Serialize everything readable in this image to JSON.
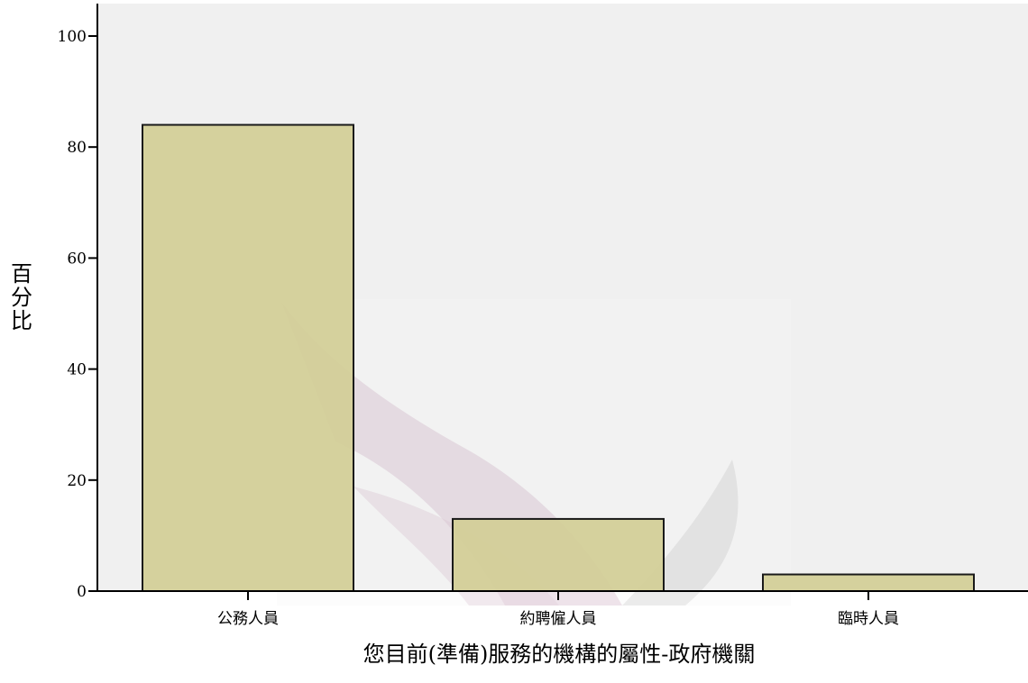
{
  "chart_data": {
    "type": "bar",
    "categories": [
      "公務人員",
      "約聘僱人員",
      "臨時人員"
    ],
    "values": [
      84,
      13,
      3
    ],
    "xlabel": "您目前(準備)服務的機構的屬性-政府機關",
    "ylabel": "百分比",
    "ylim": [
      0,
      100
    ],
    "yticks": [
      0,
      20,
      40,
      60,
      80,
      100
    ],
    "grid": false,
    "legend": "none"
  },
  "colors": {
    "plot_background": "#f0f0f0",
    "bar_fill": "#d3ce96",
    "bar_stroke": "#1a1a1a",
    "axis": "#000000"
  }
}
